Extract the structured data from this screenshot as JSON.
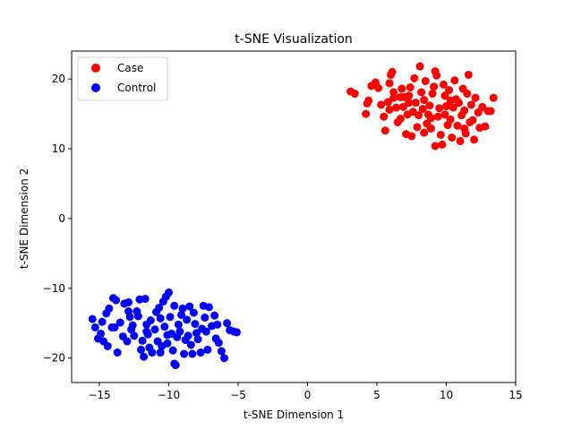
{
  "chart_data": {
    "type": "scatter",
    "title": "t-SNE Visualization",
    "xlabel": "t-SNE Dimension 1",
    "ylabel": "t-SNE Dimension 2",
    "xlim": [
      -17,
      15
    ],
    "ylim": [
      -23.5,
      24
    ],
    "xticks": [
      -15,
      -10,
      -5,
      0,
      5,
      10,
      15
    ],
    "yticks": [
      -20,
      -10,
      0,
      10,
      20
    ],
    "grid": false,
    "legend_position": "top-left",
    "series": [
      {
        "name": "Case",
        "color": "#ff0000",
        "points": [
          [
            3.1,
            18.2
          ],
          [
            3.4,
            17.9
          ],
          [
            4.2,
            15.0
          ],
          [
            4.3,
            16.5
          ],
          [
            4.4,
            16.9
          ],
          [
            4.6,
            19.0
          ],
          [
            4.9,
            19.5
          ],
          [
            5.1,
            18.7
          ],
          [
            5.3,
            16.3
          ],
          [
            5.5,
            14.6
          ],
          [
            5.6,
            12.6
          ],
          [
            5.8,
            16.7
          ],
          [
            5.9,
            19.4
          ],
          [
            6.0,
            20.6
          ],
          [
            6.1,
            21.0
          ],
          [
            6.2,
            17.3
          ],
          [
            6.4,
            15.9
          ],
          [
            6.5,
            13.8
          ],
          [
            6.7,
            14.3
          ],
          [
            6.8,
            18.6
          ],
          [
            6.9,
            16.0
          ],
          [
            7.0,
            17.4
          ],
          [
            7.1,
            12.1
          ],
          [
            7.2,
            14.9
          ],
          [
            7.3,
            17.6
          ],
          [
            7.4,
            18.8
          ],
          [
            7.5,
            11.8
          ],
          [
            7.6,
            15.3
          ],
          [
            7.7,
            20.1
          ],
          [
            7.8,
            16.6
          ],
          [
            7.9,
            13.1
          ],
          [
            8.0,
            14.8
          ],
          [
            8.1,
            21.8
          ],
          [
            8.2,
            18.1
          ],
          [
            8.3,
            15.7
          ],
          [
            8.4,
            17.0
          ],
          [
            8.5,
            19.7
          ],
          [
            8.6,
            13.6
          ],
          [
            8.7,
            14.9
          ],
          [
            8.8,
            16.2
          ],
          [
            8.9,
            12.9
          ],
          [
            9.0,
            17.9
          ],
          [
            9.1,
            18.9
          ],
          [
            9.2,
            21.1
          ],
          [
            9.3,
            20.5
          ],
          [
            9.4,
            14.6
          ],
          [
            9.5,
            15.8
          ],
          [
            9.6,
            12.0
          ],
          [
            9.7,
            10.6
          ],
          [
            9.8,
            19.2
          ],
          [
            9.9,
            17.6
          ],
          [
            10.0,
            16.1
          ],
          [
            10.1,
            13.4
          ],
          [
            10.2,
            18.4
          ],
          [
            10.3,
            14.2
          ],
          [
            10.4,
            11.6
          ],
          [
            10.5,
            15.9
          ],
          [
            10.6,
            19.8
          ],
          [
            10.7,
            17.1
          ],
          [
            10.8,
            13.3
          ],
          [
            10.9,
            16.6
          ],
          [
            11.0,
            11.1
          ],
          [
            11.1,
            14.8
          ],
          [
            11.2,
            18.6
          ],
          [
            11.3,
            15.5
          ],
          [
            11.4,
            12.2
          ],
          [
            11.5,
            17.9
          ],
          [
            11.6,
            20.6
          ],
          [
            11.7,
            13.8
          ],
          [
            11.8,
            16.3
          ],
          [
            11.9,
            14.1
          ],
          [
            12.0,
            11.3
          ],
          [
            12.1,
            17.3
          ],
          [
            12.3,
            15.2
          ],
          [
            12.4,
            13.0
          ],
          [
            12.6,
            16.0
          ],
          [
            12.8,
            13.2
          ],
          [
            13.0,
            15.4
          ],
          [
            13.2,
            15.4
          ],
          [
            13.4,
            17.3
          ],
          [
            9.2,
            10.4
          ],
          [
            8.4,
            12.3
          ],
          [
            7.3,
            16.6
          ],
          [
            6.7,
            17.4
          ],
          [
            9.9,
            14.9
          ],
          [
            10.3,
            16.9
          ],
          [
            8.9,
            14.4
          ],
          [
            6.2,
            18.1
          ],
          [
            11.3,
            12.9
          ],
          [
            5.9,
            15.6
          ]
        ]
      },
      {
        "name": "Control",
        "color": "#0000ff",
        "points": [
          [
            -15.5,
            -14.4
          ],
          [
            -15.3,
            -15.6
          ],
          [
            -15.1,
            -17.2
          ],
          [
            -14.9,
            -16.5
          ],
          [
            -14.8,
            -14.8
          ],
          [
            -14.7,
            -17.6
          ],
          [
            -14.5,
            -13.6
          ],
          [
            -14.4,
            -18.3
          ],
          [
            -14.3,
            -12.9
          ],
          [
            -14.1,
            -15.6
          ],
          [
            -14.0,
            -11.4
          ],
          [
            -13.8,
            -11.7
          ],
          [
            -13.7,
            -19.2
          ],
          [
            -13.5,
            -14.9
          ],
          [
            -13.3,
            -16.9
          ],
          [
            -13.2,
            -12.2
          ],
          [
            -13.0,
            -17.6
          ],
          [
            -12.9,
            -12.0
          ],
          [
            -12.8,
            -14.1
          ],
          [
            -12.7,
            -15.9
          ],
          [
            -12.5,
            -16.8
          ],
          [
            -12.3,
            -13.3
          ],
          [
            -12.2,
            -14.0
          ],
          [
            -12.1,
            -11.6
          ],
          [
            -12.0,
            -18.8
          ],
          [
            -11.9,
            -17.5
          ],
          [
            -11.8,
            -19.8
          ],
          [
            -11.7,
            -11.5
          ],
          [
            -11.6,
            -15.2
          ],
          [
            -11.5,
            -16.6
          ],
          [
            -11.4,
            -18.5
          ],
          [
            -11.3,
            -14.6
          ],
          [
            -11.2,
            -19.2
          ],
          [
            -11.0,
            -15.9
          ],
          [
            -10.9,
            -13.4
          ],
          [
            -10.8,
            -17.6
          ],
          [
            -10.7,
            -12.8
          ],
          [
            -10.6,
            -14.3
          ],
          [
            -10.5,
            -18.3
          ],
          [
            -10.4,
            -11.9
          ],
          [
            -10.3,
            -15.5
          ],
          [
            -10.2,
            -11.2
          ],
          [
            -10.1,
            -17.9
          ],
          [
            -10.0,
            -10.6
          ],
          [
            -9.9,
            -14.1
          ],
          [
            -9.8,
            -16.5
          ],
          [
            -9.7,
            -18.9
          ],
          [
            -9.6,
            -12.5
          ],
          [
            -9.5,
            -21.0
          ],
          [
            -9.4,
            -17.0
          ],
          [
            -9.3,
            -15.2
          ],
          [
            -9.2,
            -16.2
          ],
          [
            -9.1,
            -13.8
          ],
          [
            -9.0,
            -12.9
          ],
          [
            -8.9,
            -19.4
          ],
          [
            -8.7,
            -14.5
          ],
          [
            -8.6,
            -16.8
          ],
          [
            -8.5,
            -12.6
          ],
          [
            -8.4,
            -18.1
          ],
          [
            -8.3,
            -19.4
          ],
          [
            -8.2,
            -13.5
          ],
          [
            -8.1,
            -15.1
          ],
          [
            -8.0,
            -16.4
          ],
          [
            -7.9,
            -17.3
          ],
          [
            -7.7,
            -19.2
          ],
          [
            -7.6,
            -15.8
          ],
          [
            -7.5,
            -12.5
          ],
          [
            -7.4,
            -14.2
          ],
          [
            -7.3,
            -16.2
          ],
          [
            -7.2,
            -18.8
          ],
          [
            -7.1,
            -12.7
          ],
          [
            -6.9,
            -15.4
          ],
          [
            -6.7,
            -13.9
          ],
          [
            -6.6,
            -17.2
          ],
          [
            -6.5,
            -15.2
          ],
          [
            -6.4,
            -17.8
          ],
          [
            -6.2,
            -19.0
          ],
          [
            -6.0,
            -20.0
          ],
          [
            -5.8,
            -15.0
          ],
          [
            -5.6,
            -16.0
          ],
          [
            -5.3,
            -16.2
          ],
          [
            -5.1,
            -16.3
          ],
          [
            -11.6,
            -16.2
          ],
          [
            -10.1,
            -16.7
          ],
          [
            -12.6,
            -15.3
          ],
          [
            -9.6,
            -20.8
          ],
          [
            -13.9,
            -15.6
          ],
          [
            -8.8,
            -17.4
          ],
          [
            -10.6,
            -19.2
          ],
          [
            -12.9,
            -13.3
          ]
        ]
      }
    ]
  }
}
